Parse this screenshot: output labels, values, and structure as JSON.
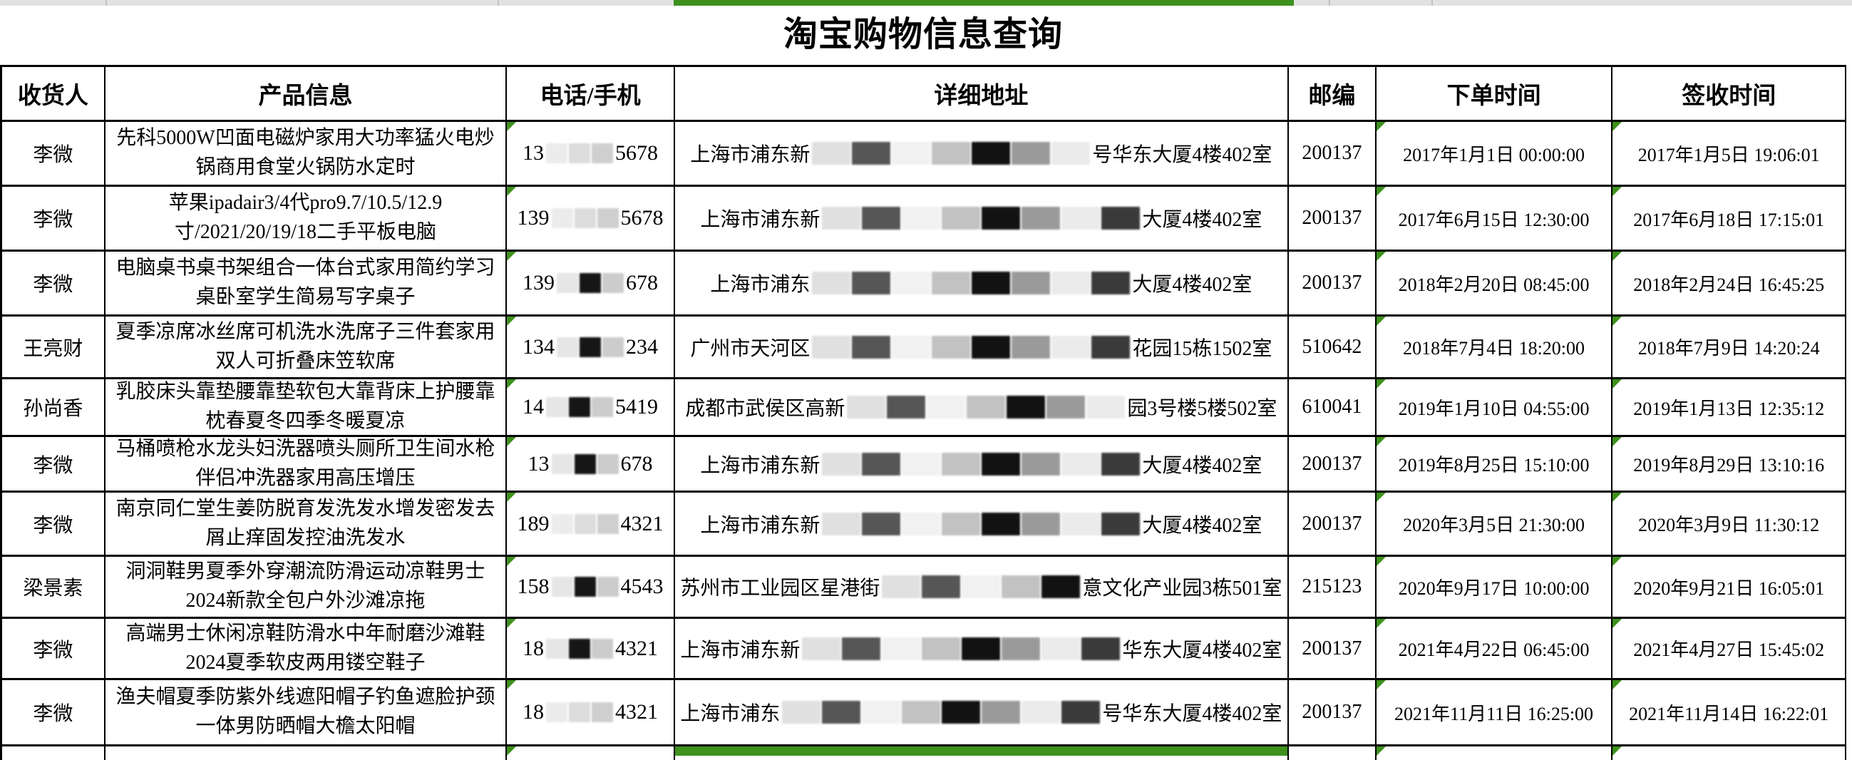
{
  "page": {
    "title": "淘宝购物信息查询"
  },
  "colors": {
    "accent_green": "#3e911d",
    "topbar_gray": "#e2e2e2",
    "border_black": "#000000"
  },
  "redaction_palettes": {
    "phone_light": [
      "#ececec",
      "#dcdcdc",
      "#cfcfcf"
    ],
    "phone_dark": [
      "#e6e6e6",
      "#161616",
      "#cccccc"
    ],
    "address": [
      "#e0e0e0",
      "#565656",
      "#f1f1f1",
      "#c2c2c2",
      "#121212",
      "#9a9a9a",
      "#ebebeb",
      "#3a3a3a"
    ]
  },
  "table": {
    "headers": [
      {
        "key": "consignee",
        "label": "收货人"
      },
      {
        "key": "product",
        "label": "产品信息"
      },
      {
        "key": "phone",
        "label": "电话/手机"
      },
      {
        "key": "address",
        "label": "详细地址"
      },
      {
        "key": "zip",
        "label": "邮编"
      },
      {
        "key": "order-time",
        "label": "下单时间"
      },
      {
        "key": "sign-time",
        "label": "签收时间"
      }
    ],
    "rows": [
      {
        "consignee": "李微",
        "product": "先科5000W凹面电磁炉家用大功率猛火电炒锅商用食堂火锅防水定时",
        "phone": {
          "prefix": "13",
          "suffix": "5678",
          "style": "light"
        },
        "address": {
          "prefix": "上海市浦东新",
          "suffix": "号华东大厦4楼402室",
          "blocks": 7
        },
        "zip": "200137",
        "order_time": "2017年1月1日 00:00:00",
        "sign_time": "2017年1月5日 19:06:01"
      },
      {
        "consignee": "李微",
        "product": "苹果ipadair3/4代pro9.7/10.5/12.9寸/2021/20/19/18二手平板电脑",
        "phone": {
          "prefix": "139",
          "suffix": "5678",
          "style": "light"
        },
        "address": {
          "prefix": "上海市浦东新",
          "suffix": "大厦4楼402室",
          "blocks": 8
        },
        "zip": "200137",
        "order_time": "2017年6月15日 12:30:00",
        "sign_time": "2017年6月18日 17:15:01"
      },
      {
        "consignee": "李微",
        "product": "电脑桌书桌书架组合一体台式家用简约学习桌卧室学生简易写字桌子",
        "phone": {
          "prefix": "139",
          "suffix": "678",
          "style": "dark"
        },
        "address": {
          "prefix": "上海市浦东",
          "suffix": "大厦4楼402室",
          "blocks": 8
        },
        "zip": "200137",
        "order_time": "2018年2月20日 08:45:00",
        "sign_time": "2018年2月24日 16:45:25"
      },
      {
        "consignee": "王亮财",
        "product": "夏季凉席冰丝席可机洗水洗席子三件套家用双人可折叠床笠软席",
        "phone": {
          "prefix": "134",
          "suffix": "234",
          "style": "dark"
        },
        "address": {
          "prefix": "广州市天河区",
          "suffix": "花园15栋1502室",
          "blocks": 8
        },
        "zip": "510642",
        "order_time": "2018年7月4日 18:20:00",
        "sign_time": "2018年7月9日 14:20:24"
      },
      {
        "consignee": "孙尚香",
        "product": "乳胶床头靠垫腰靠垫软包大靠背床上护腰靠枕春夏冬四季冬暖夏凉",
        "phone": {
          "prefix": "14",
          "suffix": "5419",
          "style": "dark"
        },
        "address": {
          "prefix": "成都市武侯区高新",
          "suffix": "园3号楼5楼502室",
          "blocks": 7
        },
        "zip": "610041",
        "order_time": "2019年1月10日 04:55:00",
        "sign_time": "2019年1月13日 12:35:12"
      },
      {
        "consignee": "李微",
        "product": "马桶喷枪水龙头妇洗器喷头厕所卫生间水枪伴侣冲洗器家用高压增压",
        "phone": {
          "prefix": "13",
          "suffix": "678",
          "style": "dark"
        },
        "address": {
          "prefix": "上海市浦东新",
          "suffix": "大厦4楼402室",
          "blocks": 8
        },
        "zip": "200137",
        "order_time": "2019年8月25日 15:10:00",
        "sign_time": "2019年8月29日 13:10:16"
      },
      {
        "consignee": "李微",
        "product": "南京同仁堂生姜防脱育发洗发水增发密发去屑止痒固发控油洗发水",
        "phone": {
          "prefix": "189",
          "suffix": "4321",
          "style": "light"
        },
        "address": {
          "prefix": "上海市浦东新",
          "suffix": "大厦4楼402室",
          "blocks": 8
        },
        "zip": "200137",
        "order_time": "2020年3月5日 21:30:00",
        "sign_time": "2020年3月9日 11:30:12"
      },
      {
        "consignee": "梁景素",
        "product": "洞洞鞋男夏季外穿潮流防滑运动凉鞋男士2024新款全包户外沙滩凉拖",
        "phone": {
          "prefix": "158",
          "suffix": "4543",
          "style": "dark"
        },
        "address": {
          "prefix": "苏州市工业园区星港街",
          "suffix": "意文化产业园3栋501室",
          "blocks": 5
        },
        "zip": "215123",
        "order_time": "2020年9月17日 10:00:00",
        "sign_time": "2020年9月21日 16:05:01"
      },
      {
        "consignee": "李微",
        "product": "高端男士休闲凉鞋防滑水中年耐磨沙滩鞋2024夏季软皮两用镂空鞋子",
        "phone": {
          "prefix": "18",
          "suffix": "4321",
          "style": "dark"
        },
        "address": {
          "prefix": "上海市浦东新",
          "suffix": "华东大厦4楼402室",
          "blocks": 8
        },
        "zip": "200137",
        "order_time": "2021年4月22日 06:45:00",
        "sign_time": "2021年4月27日 15:45:02"
      },
      {
        "consignee": "李微",
        "product": "渔夫帽夏季防紫外线遮阳帽子钓鱼遮脸护颈一体男防晒帽大檐太阳帽",
        "phone": {
          "prefix": "18",
          "suffix": "4321",
          "style": "light"
        },
        "address": {
          "prefix": "上海市浦东",
          "suffix": "号华东大厦4楼402室",
          "blocks": 8
        },
        "zip": "200137",
        "order_time": "2021年11月11日 16:25:00",
        "sign_time": "2021年11月14日 16:22:01"
      }
    ]
  }
}
